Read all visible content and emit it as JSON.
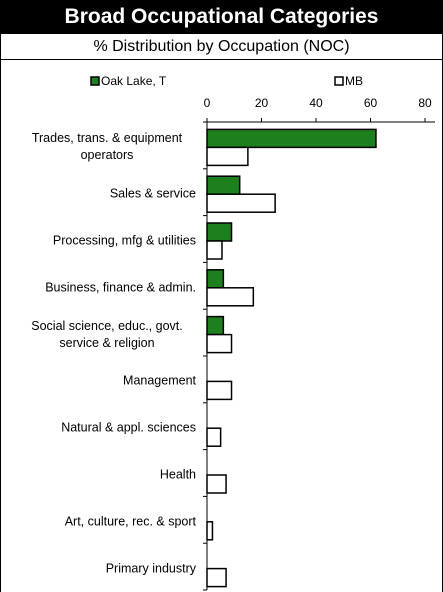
{
  "chart_data": {
    "type": "bar",
    "orientation": "horizontal",
    "title": "Broad Occupational Categories",
    "subtitle": "% Distribution by Occupation (NOC)",
    "categories": [
      "Trades, trans. & equipment operators",
      "Sales & service",
      "Processing, mfg & utilities",
      "Business, finance & admin.",
      "Social science, educ., govt. service & religion",
      "Management",
      "Natural & appl. sciences",
      "Health",
      "Art, culture, rec. & sport",
      "Primary industry"
    ],
    "series": [
      {
        "name": "Oak Lake, T",
        "color": "#1e7f1e",
        "values": [
          62,
          12,
          9,
          6,
          6,
          0,
          0,
          0,
          0,
          0
        ]
      },
      {
        "name": "MB",
        "color": "#ffffff",
        "values": [
          15,
          25,
          5.5,
          17,
          9,
          9,
          5,
          7,
          2,
          7
        ]
      }
    ],
    "xlim": [
      0,
      80
    ],
    "xticks": [
      0,
      20,
      40,
      60,
      80
    ],
    "legend": "top"
  }
}
